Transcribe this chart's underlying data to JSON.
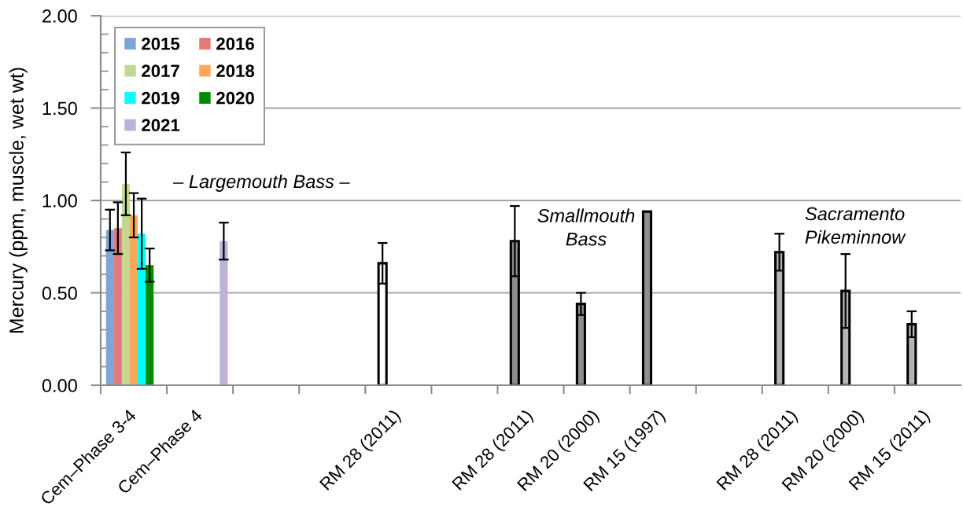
{
  "chart_data": {
    "type": "bar",
    "ylabel": "Mercury (ppm, muscle, wet wt)",
    "categories": [
      "Cem–Phase 3-4",
      "Cem–Phase 4",
      null,
      null,
      "RM 28 (2011)",
      null,
      "RM 28 (2011)",
      "RM 20 (2000)",
      "RM 15 (1997)",
      null,
      "RM 28 (2011)",
      "RM 20 (2000)",
      "RM 15 (2011)"
    ],
    "series": [
      {
        "name": "2015",
        "color": "#7ba6dc",
        "values": [
          0.84,
          null,
          null,
          null,
          null,
          null,
          null,
          null,
          null,
          null,
          null,
          null,
          null
        ],
        "errors": [
          0.11,
          null,
          null,
          null,
          null,
          null,
          null,
          null,
          null,
          null,
          null,
          null,
          null
        ]
      },
      {
        "color": "#ffffff",
        "values": [
          null,
          null,
          null,
          null,
          0.66,
          null,
          null,
          null,
          null,
          null,
          null,
          null,
          null
        ],
        "errors": [
          null,
          null,
          null,
          null,
          0.11,
          null,
          null,
          null,
          null,
          null,
          null,
          null,
          null
        ]
      },
      {
        "color": "#8e8e8e",
        "values": [
          null,
          null,
          null,
          null,
          null,
          null,
          0.78,
          0.44,
          0.94,
          null,
          null,
          null,
          null
        ],
        "errors": [
          null,
          null,
          null,
          null,
          null,
          null,
          0.19,
          0.06,
          null,
          null,
          null,
          null,
          null
        ]
      },
      {
        "color": "#b4b4b4",
        "values": [
          null,
          null,
          null,
          null,
          null,
          null,
          null,
          null,
          null,
          null,
          0.72,
          0.51,
          0.33
        ],
        "errors": [
          null,
          null,
          null,
          null,
          null,
          null,
          null,
          null,
          null,
          null,
          0.1,
          0.2,
          0.07
        ]
      },
      {
        "name": "2016",
        "color": "#e07b78",
        "values": [
          0.85,
          null,
          null,
          null,
          null,
          null,
          null,
          null,
          null,
          null,
          null,
          null,
          null
        ],
        "errors": [
          0.14,
          null,
          null,
          null,
          null,
          null,
          null,
          null,
          null,
          null,
          null,
          null,
          null
        ]
      },
      {
        "name": "2017",
        "color": "#c2d993",
        "values": [
          1.09,
          null,
          null,
          null,
          null,
          null,
          null,
          null,
          null,
          null,
          null,
          null,
          null
        ],
        "errors": [
          0.17,
          null,
          null,
          null,
          null,
          null,
          null,
          null,
          null,
          null,
          null,
          null,
          null
        ]
      },
      {
        "name": "2018",
        "color": "#f9a85a",
        "values": [
          0.92,
          null,
          null,
          null,
          null,
          null,
          null,
          null,
          null,
          null,
          null,
          null,
          null
        ],
        "errors": [
          0.12,
          null,
          null,
          null,
          null,
          null,
          null,
          null,
          null,
          null,
          null,
          null,
          null
        ]
      },
      {
        "name": "2019",
        "color": "#00ffff",
        "values": [
          0.82,
          null,
          null,
          null,
          null,
          null,
          null,
          null,
          null,
          null,
          null,
          null,
          null
        ],
        "errors": [
          0.19,
          null,
          null,
          null,
          null,
          null,
          null,
          null,
          null,
          null,
          null,
          null,
          null
        ]
      },
      {
        "name": "2020",
        "color": "#008c00",
        "values": [
          0.65,
          null,
          null,
          null,
          null,
          null,
          null,
          null,
          null,
          null,
          null,
          null,
          null
        ],
        "errors": [
          0.09,
          null,
          null,
          null,
          null,
          null,
          null,
          null,
          null,
          null,
          null,
          null,
          null
        ]
      },
      {
        "name": "2021",
        "color": "#bfb1d6",
        "values": [
          null,
          0.78,
          null,
          null,
          null,
          null,
          null,
          null,
          null,
          null,
          null,
          null,
          null
        ],
        "errors": [
          null,
          0.1,
          null,
          null,
          null,
          null,
          null,
          null,
          null,
          null,
          null,
          null,
          null
        ]
      }
    ],
    "ylim": [
      0,
      2
    ],
    "yticks": [
      {
        "value": 0,
        "label": "0.00"
      },
      {
        "value": 0.1,
        "label": null
      },
      {
        "value": 0.2,
        "label": null
      },
      {
        "value": 0.3,
        "label": null
      },
      {
        "value": 0.4,
        "label": null
      },
      {
        "value": 0.5,
        "label": "0.50"
      },
      {
        "value": 0.6,
        "label": null
      },
      {
        "value": 0.7,
        "label": null
      },
      {
        "value": 0.8,
        "label": null
      },
      {
        "value": 0.9,
        "label": null
      },
      {
        "value": 1,
        "label": "1.00"
      },
      {
        "value": 1.1,
        "label": null
      },
      {
        "value": 1.2,
        "label": null
      },
      {
        "value": 1.3,
        "label": null
      },
      {
        "value": 1.4,
        "label": null
      },
      {
        "value": 1.5,
        "label": "1.50"
      },
      {
        "value": 1.6,
        "label": null
      },
      {
        "value": 1.7,
        "label": null
      },
      {
        "value": 1.8,
        "label": null
      },
      {
        "value": 1.9,
        "label": null
      },
      {
        "value": 2,
        "label": "2.00"
      }
    ],
    "grid": "y",
    "legend": "top left",
    "annotations": [
      "– Largemouth Bass –",
      "Smallmouth\nBass",
      "Sacramento\nPikeminnow"
    ]
  }
}
